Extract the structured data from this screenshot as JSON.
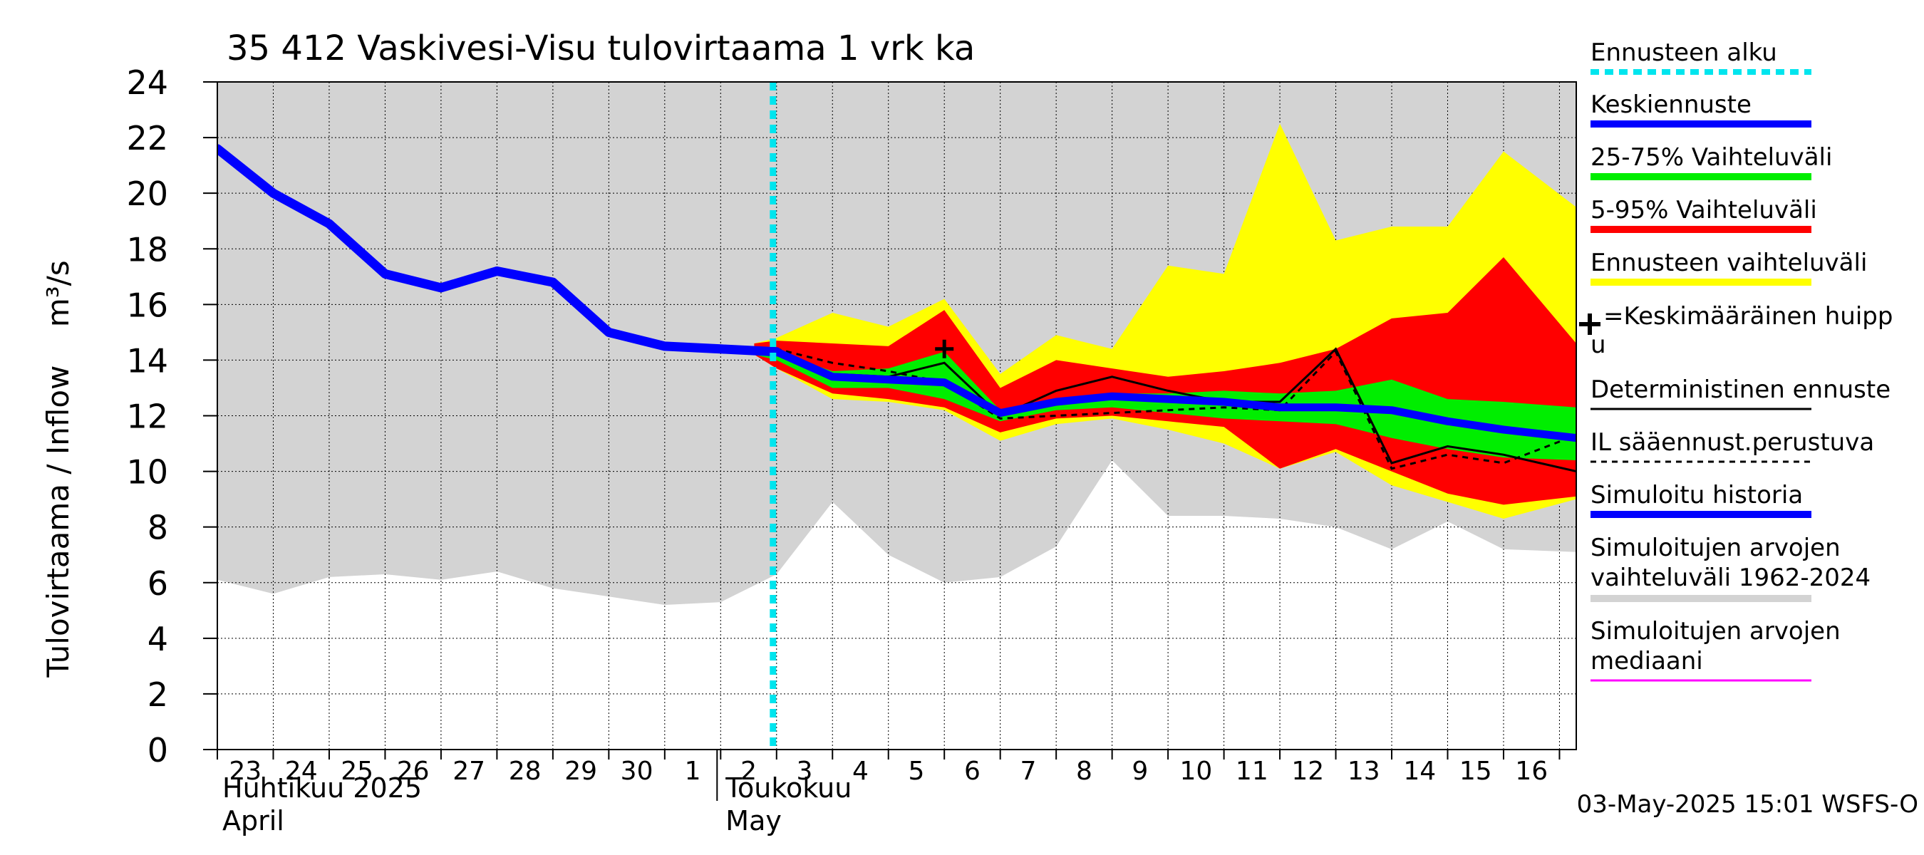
{
  "chart_data": {
    "type": "area",
    "title": "35 412 Vaskivesi-Visu tulovirtaama 1 vrk ka",
    "ylabel": "Tulovirtaama / Inflow    m³/s",
    "ylim": [
      0,
      24
    ],
    "yticks": [
      0,
      2,
      4,
      6,
      8,
      10,
      12,
      14,
      16,
      18,
      20,
      22,
      24
    ],
    "x_day_labels": [
      "23",
      "24",
      "25",
      "26",
      "27",
      "28",
      "29",
      "30",
      "1",
      "2",
      "3",
      "4",
      "5",
      "6",
      "7",
      "8",
      "9",
      "10",
      "11",
      "12",
      "13",
      "14",
      "15",
      "16"
    ],
    "month_labels": [
      {
        "fi": "Huhtikuu  2025",
        "en": "April",
        "at_day": 0
      },
      {
        "fi": "Toukokuu",
        "en": "May",
        "at_day": 9
      }
    ],
    "forecast_start_day": 10,
    "footer": "03-May-2025 15:01 WSFS-O",
    "series": {
      "hist_range": {
        "upper": [
          [
            0,
            24
          ],
          [
            24.3,
            24
          ]
        ],
        "lower": [
          [
            0,
            6.1
          ],
          [
            1,
            5.6
          ],
          [
            2,
            6.2
          ],
          [
            3,
            6.3
          ],
          [
            4,
            6.1
          ],
          [
            5,
            6.4
          ],
          [
            6,
            5.8
          ],
          [
            7,
            5.5
          ],
          [
            8,
            5.2
          ],
          [
            9,
            5.3
          ],
          [
            10,
            6.3
          ],
          [
            11,
            8.9
          ],
          [
            12,
            7.0
          ],
          [
            13,
            6.0
          ],
          [
            14,
            6.2
          ],
          [
            15,
            7.3
          ],
          [
            16,
            10.4
          ],
          [
            17,
            8.4
          ],
          [
            18,
            8.4
          ],
          [
            19,
            8.3
          ],
          [
            20,
            8.0
          ],
          [
            21,
            7.2
          ],
          [
            22,
            8.2
          ],
          [
            23,
            7.2
          ],
          [
            24.3,
            7.1
          ]
        ]
      },
      "ennuste_range": {
        "upper": [
          [
            9.6,
            14.6
          ],
          [
            10,
            14.8
          ],
          [
            11,
            15.7
          ],
          [
            12,
            15.2
          ],
          [
            13,
            16.2
          ],
          [
            14,
            13.5
          ],
          [
            15,
            14.9
          ],
          [
            16,
            14.4
          ],
          [
            17,
            17.4
          ],
          [
            18,
            17.1
          ],
          [
            19,
            22.5
          ],
          [
            20,
            18.3
          ],
          [
            21,
            18.8
          ],
          [
            22,
            18.8
          ],
          [
            23,
            21.5
          ],
          [
            24.3,
            19.5
          ]
        ],
        "lower": [
          [
            9.6,
            14.2
          ],
          [
            10,
            13.7
          ],
          [
            11,
            12.6
          ],
          [
            12,
            12.5
          ],
          [
            13,
            12.2
          ],
          [
            14,
            11.1
          ],
          [
            15,
            11.7
          ],
          [
            16,
            11.9
          ],
          [
            17,
            11.5
          ],
          [
            18,
            11.0
          ],
          [
            19,
            10.1
          ],
          [
            20,
            10.7
          ],
          [
            21,
            9.5
          ],
          [
            22,
            8.9
          ],
          [
            23,
            8.3
          ],
          [
            24.3,
            9.0
          ]
        ]
      },
      "p5_95": {
        "upper": [
          [
            9.6,
            14.6
          ],
          [
            10,
            14.7
          ],
          [
            11,
            14.6
          ],
          [
            12,
            14.5
          ],
          [
            13,
            15.8
          ],
          [
            14,
            13.0
          ],
          [
            15,
            14.0
          ],
          [
            16,
            13.7
          ],
          [
            17,
            13.4
          ],
          [
            18,
            13.6
          ],
          [
            19,
            13.9
          ],
          [
            20,
            14.4
          ],
          [
            21,
            15.5
          ],
          [
            22,
            15.7
          ],
          [
            23,
            17.7
          ],
          [
            24.3,
            14.6
          ]
        ],
        "lower": [
          [
            9.6,
            14.2
          ],
          [
            10,
            13.7
          ],
          [
            11,
            12.8
          ],
          [
            12,
            12.6
          ],
          [
            13,
            12.3
          ],
          [
            14,
            11.4
          ],
          [
            15,
            11.9
          ],
          [
            16,
            12.0
          ],
          [
            17,
            11.8
          ],
          [
            18,
            11.6
          ],
          [
            19,
            10.1
          ],
          [
            20,
            10.8
          ],
          [
            21,
            10.0
          ],
          [
            22,
            9.2
          ],
          [
            23,
            8.8
          ],
          [
            24.3,
            9.1
          ]
        ]
      },
      "p25_75": {
        "upper": [
          [
            9.6,
            14.4
          ],
          [
            10,
            14.3
          ],
          [
            11,
            13.6
          ],
          [
            12,
            13.7
          ],
          [
            13,
            14.3
          ],
          [
            14,
            12.2
          ],
          [
            15,
            12.6
          ],
          [
            16,
            12.8
          ],
          [
            17,
            12.8
          ],
          [
            18,
            12.9
          ],
          [
            19,
            12.8
          ],
          [
            20,
            12.9
          ],
          [
            21,
            13.3
          ],
          [
            22,
            12.6
          ],
          [
            23,
            12.5
          ],
          [
            24.3,
            12.3
          ]
        ],
        "lower": [
          [
            9.6,
            14.2
          ],
          [
            10,
            14.0
          ],
          [
            11,
            13.0
          ],
          [
            12,
            13.0
          ],
          [
            13,
            12.6
          ],
          [
            14,
            11.8
          ],
          [
            15,
            12.2
          ],
          [
            16,
            12.3
          ],
          [
            17,
            12.1
          ],
          [
            18,
            11.9
          ],
          [
            19,
            11.8
          ],
          [
            20,
            11.7
          ],
          [
            21,
            11.2
          ],
          [
            22,
            10.8
          ],
          [
            23,
            10.5
          ],
          [
            24.3,
            10.4
          ]
        ]
      },
      "deterministic": [
        [
          9.6,
          14.4
        ],
        [
          10,
          14.2
        ],
        [
          11,
          13.5
        ],
        [
          12,
          13.4
        ],
        [
          13,
          13.9
        ],
        [
          14,
          12.0
        ],
        [
          15,
          12.9
        ],
        [
          16,
          13.4
        ],
        [
          17,
          12.9
        ],
        [
          18,
          12.5
        ],
        [
          19,
          12.5
        ],
        [
          20,
          14.4
        ],
        [
          21,
          10.3
        ],
        [
          22,
          10.9
        ],
        [
          23,
          10.6
        ],
        [
          24.3,
          10.0
        ]
      ],
      "il_forecast": [
        [
          9.6,
          14.4
        ],
        [
          10,
          14.4
        ],
        [
          11,
          13.9
        ],
        [
          12,
          13.6
        ],
        [
          13,
          13.2
        ],
        [
          14,
          11.9
        ],
        [
          15,
          12.0
        ],
        [
          16,
          12.1
        ],
        [
          17,
          12.2
        ],
        [
          18,
          12.3
        ],
        [
          19,
          12.2
        ],
        [
          20,
          14.3
        ],
        [
          21,
          10.1
        ],
        [
          22,
          10.6
        ],
        [
          23,
          10.3
        ],
        [
          24.3,
          11.3
        ]
      ],
      "simulated_history": [
        [
          0,
          21.6
        ],
        [
          1,
          20.0
        ],
        [
          2,
          18.9
        ],
        [
          3,
          17.1
        ],
        [
          4,
          16.6
        ],
        [
          5,
          17.2
        ],
        [
          6,
          16.8
        ],
        [
          7,
          15.0
        ],
        [
          8,
          14.5
        ],
        [
          9,
          14.4
        ],
        [
          10,
          14.3
        ]
      ],
      "mean_forecast": [
        [
          10,
          14.3
        ],
        [
          11,
          13.4
        ],
        [
          12,
          13.3
        ],
        [
          13,
          13.2
        ],
        [
          14,
          12.1
        ],
        [
          15,
          12.5
        ],
        [
          16,
          12.7
        ],
        [
          17,
          12.6
        ],
        [
          18,
          12.5
        ],
        [
          19,
          12.3
        ],
        [
          20,
          12.3
        ],
        [
          21,
          12.2
        ],
        [
          22,
          11.8
        ],
        [
          23,
          11.5
        ],
        [
          24.3,
          11.2
        ]
      ],
      "mean_peak": {
        "x": 13,
        "y": 14.4
      }
    },
    "legend": [
      {
        "key": "ennusteen-alku",
        "label": "Ennusteen alku",
        "color": "#00e5ee",
        "style": "dotted"
      },
      {
        "key": "keskiennuste",
        "label": "Keskiennuste",
        "color": "#0000ff",
        "style": "thick"
      },
      {
        "key": "vaihteluvali-25-75",
        "label": "25-75% Vaihteluväli",
        "color": "#00ee00",
        "style": "thick"
      },
      {
        "key": "vaihteluvali-5-95",
        "label": "5-95% Vaihteluväli",
        "color": "#ff0000",
        "style": "thick"
      },
      {
        "key": "ennusteen-vaihteluvali",
        "label": "Ennusteen vaihteluväli",
        "color": "#ffff00",
        "style": "thick"
      },
      {
        "key": "keskimaarainen-huippu",
        "label": "=Keskimääräinen huipp",
        "label2": "u",
        "color": "#000000",
        "style": "marker"
      },
      {
        "key": "deterministinen",
        "label": "Deterministinen ennuste",
        "color": "#000000",
        "style": "thin"
      },
      {
        "key": "il-saaennuste",
        "label": "IL sääennust.perustuva",
        "color": "#000000",
        "style": "dashed"
      },
      {
        "key": "simuloitu-historia",
        "label": "Simuloitu historia",
        "color": "#0000ff",
        "style": "thick"
      },
      {
        "key": "simuloitujen-vaihteluvali",
        "label": "Simuloitujen arvojen",
        "label2": "vaihteluväli 1962-2024",
        "color": "#d3d3d3",
        "style": "thick"
      },
      {
        "key": "simuloitujen-mediaani",
        "label": "Simuloitujen arvojen",
        "label2": "mediaani",
        "color": "#ff00ff",
        "style": "thin"
      }
    ]
  }
}
